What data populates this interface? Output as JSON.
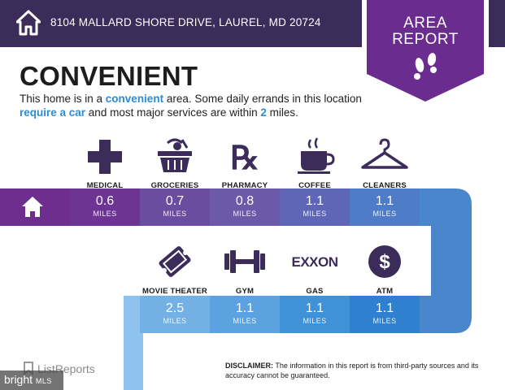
{
  "header": {
    "address": "8104 MALLARD SHORE DRIVE, LAUREL, MD 20724",
    "icon": "house-icon"
  },
  "badge": {
    "line1": "AREA",
    "line2": "REPORT",
    "icon": "footprints-icon"
  },
  "title": "CONVENIENT",
  "description": {
    "part1": "This home is in a ",
    "hl1": "convenient",
    "part2": " area. Some daily errands in this location ",
    "hl2": "require a car",
    "part3": " and most major services are within ",
    "hl3": "2",
    "part4": " miles."
  },
  "row1": [
    {
      "label": "MEDICAL",
      "icon": "medical-cross-icon",
      "value": "0.6",
      "unit": "MILES"
    },
    {
      "label": "GROCERIES",
      "icon": "grocery-basket-icon",
      "value": "0.7",
      "unit": "MILES"
    },
    {
      "label": "PHARMACY",
      "icon": "rx-icon",
      "value": "0.8",
      "unit": "MILES"
    },
    {
      "label": "COFFEE",
      "icon": "coffee-cup-icon",
      "value": "1.1",
      "unit": "MILES"
    },
    {
      "label": "CLEANERS",
      "icon": "hanger-icon",
      "value": "1.1",
      "unit": "MILES"
    }
  ],
  "row2": [
    {
      "label": "MOVIE THEATER",
      "icon": "ticket-icon",
      "value": "2.5",
      "unit": "MILES"
    },
    {
      "label": "GYM",
      "icon": "dumbbell-icon",
      "value": "1.1",
      "unit": "MILES"
    },
    {
      "label": "GAS",
      "icon": "exxon-logo",
      "logo_text": "EXXON",
      "value": "1.1",
      "unit": "MILES"
    },
    {
      "label": "ATM",
      "icon": "dollar-coin-icon",
      "value": "1.1",
      "unit": "MILES"
    }
  ],
  "footer": {
    "brand": "ListReports",
    "bright": "bright",
    "mls": "MLS",
    "disclaimer_label": "DISCLAIMER:",
    "disclaimer_text": " The information in this report is from third-party sources and its accuracy cannot be guaranteed."
  },
  "colors": {
    "header": "#3b2c5a",
    "badge": "#6a2d8f",
    "row1": [
      "#6e3494",
      "#6a4d9e",
      "#6c5aa8",
      "#5f66b6",
      "#4f7cc6"
    ],
    "row2": [
      "#73b0e3",
      "#5da2e0",
      "#3f91d8",
      "#2f80ce"
    ],
    "highlight": "#2d8bd1"
  }
}
